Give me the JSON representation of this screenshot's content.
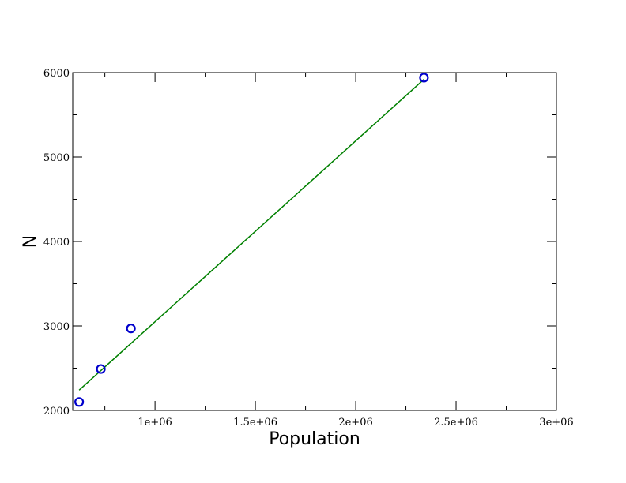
{
  "chart_data": {
    "type": "scatter",
    "xlabel": "Population",
    "ylabel": "N",
    "xlim": [
      590000,
      3000000
    ],
    "ylim": [
      2000,
      6000
    ],
    "x_ticks": [
      1000000,
      1500000,
      2000000,
      2500000,
      3000000
    ],
    "x_tick_labels": [
      "1e+06",
      "1.5e+06",
      "2e+06",
      "2.5e+06",
      "3e+06"
    ],
    "y_ticks": [
      2000,
      3000,
      4000,
      5000,
      6000
    ],
    "y_tick_labels": [
      "2000",
      "3000",
      "4000",
      "5000",
      "6000"
    ],
    "grid": false,
    "series": [
      {
        "type": "scatter",
        "marker": "open-circle",
        "color": "#0000cc",
        "x": [
          622000,
          730000,
          880000,
          2340000
        ],
        "y": [
          2100,
          2490,
          2970,
          5940
        ]
      },
      {
        "type": "line",
        "color": "#008000",
        "x": [
          622000,
          2340000
        ],
        "y": [
          2240,
          5920
        ]
      }
    ]
  }
}
